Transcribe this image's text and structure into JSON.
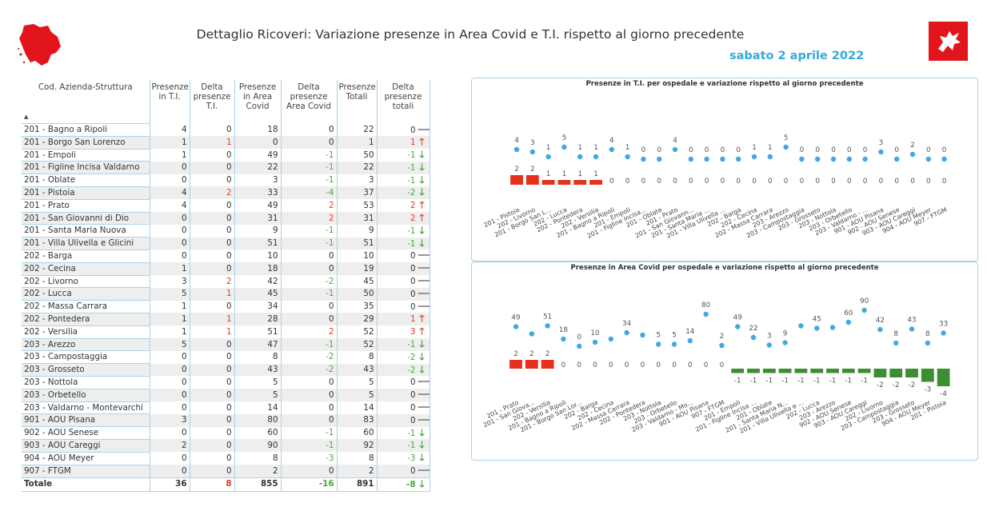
{
  "header": {
    "title": "Dettaglio Ricoveri: Variazione presenze in Area Covid e T.I. rispetto al giorno precedente",
    "date": "sabato 2 aprile 2022"
  },
  "table": {
    "columns": [
      "Cod. Azienda-Struttura",
      "Presenze in T.I.",
      "Delta presenze T.I.",
      "Presenze in Area Covid",
      "Delta presenze Area Covid",
      "Presenze Totali",
      "Delta presenze totali"
    ],
    "rows": [
      {
        "name": "201 - Bagno a Ripoli",
        "ti": "4",
        "dti": "0",
        "ac": "18",
        "dac": "0",
        "tot": "22",
        "dtot": "0",
        "trend": "flat"
      },
      {
        "name": "201 - Borgo San Lorenzo",
        "ti": "1",
        "dti": "1",
        "ac": "0",
        "dac": "0",
        "tot": "1",
        "dtot": "1",
        "trend": "up"
      },
      {
        "name": "201 - Empoli",
        "ti": "1",
        "dti": "0",
        "ac": "49",
        "dac": "-1",
        "tot": "50",
        "dtot": "-1",
        "trend": "down"
      },
      {
        "name": "201 - Figline Incisa Valdarno",
        "ti": "0",
        "dti": "0",
        "ac": "22",
        "dac": "-1",
        "tot": "22",
        "dtot": "-1",
        "trend": "down"
      },
      {
        "name": "201 - Oblate",
        "ti": "0",
        "dti": "0",
        "ac": "3",
        "dac": "-1",
        "tot": "3",
        "dtot": "-1",
        "trend": "down"
      },
      {
        "name": "201 - Pistoia",
        "ti": "4",
        "dti": "2",
        "ac": "33",
        "dac": "-4",
        "tot": "37",
        "dtot": "-2",
        "trend": "down"
      },
      {
        "name": "201 - Prato",
        "ti": "4",
        "dti": "0",
        "ac": "49",
        "dac": "2",
        "tot": "53",
        "dtot": "2",
        "trend": "up"
      },
      {
        "name": "201 - San Giovanni di Dio",
        "ti": "0",
        "dti": "0",
        "ac": "31",
        "dac": "2",
        "tot": "31",
        "dtot": "2",
        "trend": "up"
      },
      {
        "name": "201 - Santa Maria Nuova",
        "ti": "0",
        "dti": "0",
        "ac": "9",
        "dac": "-1",
        "tot": "9",
        "dtot": "-1",
        "trend": "down"
      },
      {
        "name": "201 - Villa Ulivella e Glicini",
        "ti": "0",
        "dti": "0",
        "ac": "51",
        "dac": "-1",
        "tot": "51",
        "dtot": "-1",
        "trend": "down"
      },
      {
        "name": "202 - Barga",
        "ti": "0",
        "dti": "0",
        "ac": "10",
        "dac": "0",
        "tot": "10",
        "dtot": "0",
        "trend": "flat"
      },
      {
        "name": "202 - Cecina",
        "ti": "1",
        "dti": "0",
        "ac": "18",
        "dac": "0",
        "tot": "19",
        "dtot": "0",
        "trend": "flat"
      },
      {
        "name": "202 - Livorno",
        "ti": "3",
        "dti": "2",
        "ac": "42",
        "dac": "-2",
        "tot": "45",
        "dtot": "0",
        "trend": "flat"
      },
      {
        "name": "202 - Lucca",
        "ti": "5",
        "dti": "1",
        "ac": "45",
        "dac": "-1",
        "tot": "50",
        "dtot": "0",
        "trend": "flat"
      },
      {
        "name": "202 - Massa Carrara",
        "ti": "1",
        "dti": "0",
        "ac": "34",
        "dac": "0",
        "tot": "35",
        "dtot": "0",
        "trend": "flat"
      },
      {
        "name": "202 - Pontedera",
        "ti": "1",
        "dti": "1",
        "ac": "28",
        "dac": "0",
        "tot": "29",
        "dtot": "1",
        "trend": "up"
      },
      {
        "name": "202 - Versilia",
        "ti": "1",
        "dti": "1",
        "ac": "51",
        "dac": "2",
        "tot": "52",
        "dtot": "3",
        "trend": "up"
      },
      {
        "name": "203 - Arezzo",
        "ti": "5",
        "dti": "0",
        "ac": "47",
        "dac": "-1",
        "tot": "52",
        "dtot": "-1",
        "trend": "down"
      },
      {
        "name": "203 - Campostaggia",
        "ti": "0",
        "dti": "0",
        "ac": "8",
        "dac": "-2",
        "tot": "8",
        "dtot": "-2",
        "trend": "down"
      },
      {
        "name": "203 - Grosseto",
        "ti": "0",
        "dti": "0",
        "ac": "43",
        "dac": "-2",
        "tot": "43",
        "dtot": "-2",
        "trend": "down"
      },
      {
        "name": "203 - Nottola",
        "ti": "0",
        "dti": "0",
        "ac": "5",
        "dac": "0",
        "tot": "5",
        "dtot": "0",
        "trend": "flat"
      },
      {
        "name": "203 - Orbetello",
        "ti": "0",
        "dti": "0",
        "ac": "5",
        "dac": "0",
        "tot": "5",
        "dtot": "0",
        "trend": "flat"
      },
      {
        "name": "203 - Valdarno - Montevarchi",
        "ti": "0",
        "dti": "0",
        "ac": "14",
        "dac": "0",
        "tot": "14",
        "dtot": "0",
        "trend": "flat"
      },
      {
        "name": "901 - AOU Pisana",
        "ti": "3",
        "dti": "0",
        "ac": "80",
        "dac": "0",
        "tot": "83",
        "dtot": "0",
        "trend": "flat"
      },
      {
        "name": "902 - AOU Senese",
        "ti": "0",
        "dti": "0",
        "ac": "60",
        "dac": "-1",
        "tot": "60",
        "dtot": "-1",
        "trend": "down"
      },
      {
        "name": "903 - AOU Careggi",
        "ti": "2",
        "dti": "0",
        "ac": "90",
        "dac": "-1",
        "tot": "92",
        "dtot": "-1",
        "trend": "down"
      },
      {
        "name": "904 - AOU Meyer",
        "ti": "0",
        "dti": "0",
        "ac": "8",
        "dac": "-3",
        "tot": "8",
        "dtot": "-3",
        "trend": "down"
      },
      {
        "name": "907 - FTGM",
        "ti": "0",
        "dti": "0",
        "ac": "2",
        "dac": "0",
        "tot": "2",
        "dtot": "0",
        "trend": "flat"
      }
    ],
    "total": {
      "name": "Totale",
      "ti": "36",
      "dti": "8",
      "ac": "855",
      "dac": "-16",
      "tot": "891",
      "dtot": "-8",
      "trend": "down"
    }
  },
  "colors": {
    "bar_up": "#e8301c",
    "bar_down": "#3c8f30",
    "point": "#41a9e0",
    "arrow_up": "#e74c2c",
    "arrow_down": "#4aa83c",
    "arrow_flat": "#777777",
    "border": "#a8d4ea",
    "date": "#33aadd"
  },
  "chart_data": [
    {
      "type": "bar",
      "title": "Presenze in T.I. per ospedale e variazione rispetto al giorno precedente",
      "categories": [
        "201 - Pistoia",
        "202 - Livorno",
        "201 - Borgo San L...",
        "202 - Lucca",
        "202 - Pontedera",
        "202 - Versilia",
        "201 - Bagno a Ripoli",
        "201 - Empoli",
        "201 - Figline Incisa...",
        "201 - Oblate",
        "201 - Prato",
        "201 - San Giovann...",
        "201 - Santa Maria ...",
        "201 - Villa Ulivella ...",
        "202 - Barga",
        "202 - Cecina",
        "202 - Massa Carrara",
        "203 - Arezzo",
        "203 - Campostaggia",
        "203 - Grosseto",
        "203 - Nottola",
        "203 - Orbetello",
        "203 - Valdarno - ...",
        "901 - AOU Pisana",
        "902 - AOU Senese",
        "903 - AOU Careggi",
        "904 - AOU Meyer",
        "907 - FTGM"
      ],
      "series": [
        {
          "name": "Presenze",
          "kind": "point",
          "values": [
            4,
            3,
            1,
            5,
            1,
            1,
            4,
            1,
            0,
            0,
            4,
            0,
            0,
            0,
            0,
            1,
            1,
            5,
            0,
            0,
            0,
            0,
            0,
            3,
            0,
            2,
            0,
            0
          ]
        },
        {
          "name": "Delta",
          "kind": "bar",
          "values": [
            2,
            2,
            1,
            1,
            1,
            1,
            0,
            0,
            0,
            0,
            0,
            0,
            0,
            0,
            0,
            0,
            0,
            0,
            0,
            0,
            0,
            0,
            0,
            0,
            0,
            0,
            0,
            0
          ]
        }
      ]
    },
    {
      "type": "bar",
      "title": "Presenze in Area Covid per ospedale e variazione rispetto al giorno precedente",
      "categories": [
        "201 - Prato",
        "201 - San Giova...",
        "202 - Versilia",
        "201 - Bagno a Ripoli",
        "201 - Borgo San Lor...",
        "202 - Barga",
        "202 - Cecina",
        "202 - Massa Carrara",
        "202 - Pontedera",
        "203 - Nottola",
        "203 - Orbetello",
        "203 - Valdarno - Mo...",
        "901 - AOU Pisana",
        "907 - FTGM",
        "201 - Empoli",
        "201 - Figline Incisa ...",
        "201 - Oblate",
        "201 - Santa Maria N...",
        "201 - Villa Ulivella e ...",
        "202 - Lucca",
        "203 - Arezzo",
        "902 - AOU Senese",
        "903 - AOU Careggi",
        "202 - Livorno",
        "203 - Campostaggia",
        "203 - Grosseto",
        "904 - AOU Meyer",
        "201 - Pistoia"
      ],
      "series": [
        {
          "name": "Presenze",
          "kind": "point",
          "values": [
            49,
            31,
            51,
            18,
            0,
            10,
            18,
            34,
            28,
            5,
            5,
            14,
            80,
            2,
            49,
            22,
            3,
            9,
            51,
            45,
            47,
            60,
            90,
            42,
            8,
            43,
            8,
            33
          ]
        },
        {
          "name": "Delta",
          "kind": "bar",
          "values": [
            2,
            2,
            2,
            0,
            0,
            0,
            0,
            0,
            0,
            0,
            0,
            0,
            0,
            0,
            -1,
            -1,
            -1,
            -1,
            -1,
            -1,
            -1,
            -1,
            -1,
            -2,
            -2,
            -2,
            -3,
            -4
          ]
        }
      ],
      "point_labels": [
        "49",
        "",
        "51",
        "18",
        "0",
        "10",
        "",
        "34",
        "",
        "5",
        "5",
        "14",
        "80",
        "2",
        "49",
        "22",
        "3",
        "9",
        "",
        "45",
        "",
        "60",
        "90",
        "42",
        "8",
        "43",
        "8",
        "33"
      ]
    }
  ]
}
